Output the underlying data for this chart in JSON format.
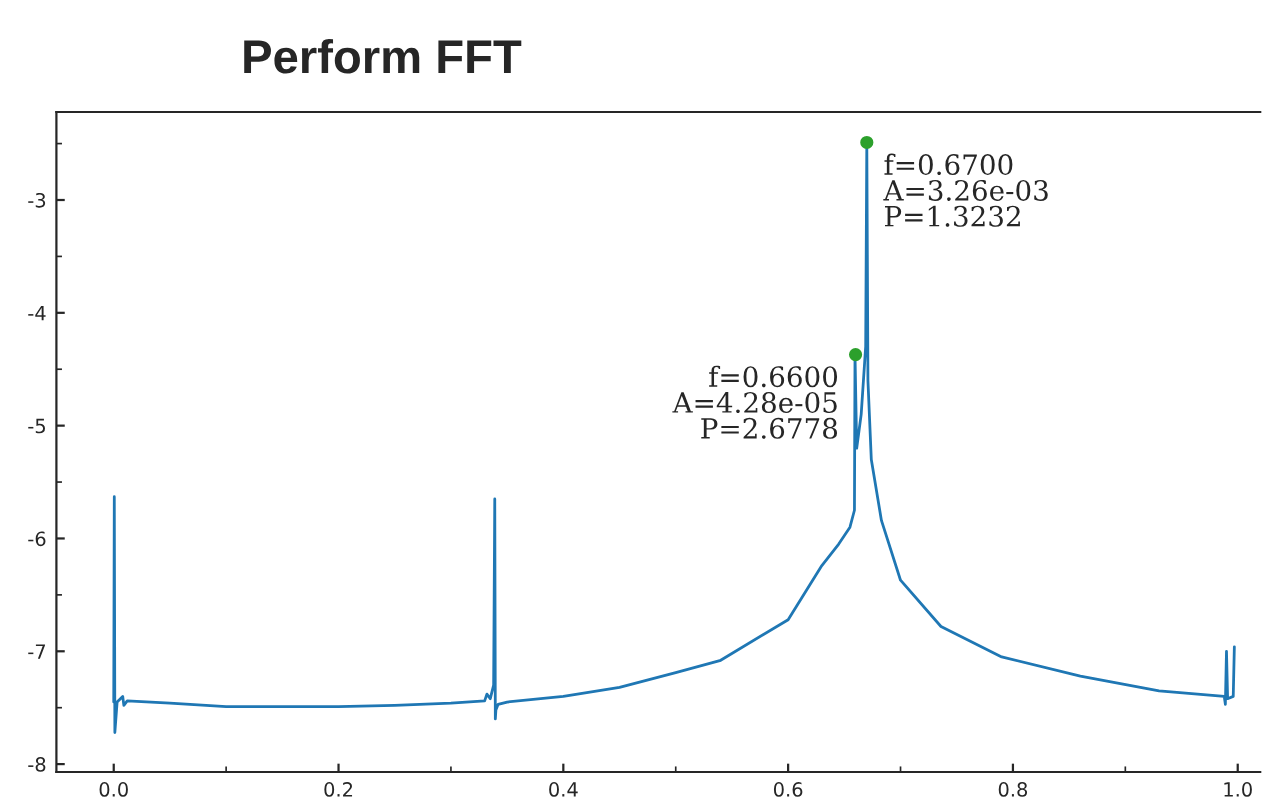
{
  "chart_data": {
    "type": "line",
    "title": "Perform FFT",
    "x": [
      0.0,
      0.0005,
      0.001,
      0.003,
      0.008,
      0.009,
      0.012,
      0.05,
      0.1,
      0.2,
      0.25,
      0.3,
      0.33,
      0.332,
      0.335,
      0.338,
      0.339,
      0.3395,
      0.34,
      0.342,
      0.35,
      0.4,
      0.45,
      0.5,
      0.54,
      0.6,
      0.63,
      0.645,
      0.655,
      0.659,
      0.6595,
      0.661,
      0.665,
      0.669,
      0.67,
      0.671,
      0.674,
      0.683,
      0.7,
      0.736,
      0.79,
      0.86,
      0.93,
      0.988,
      0.989,
      0.99,
      0.991,
      0.996,
      0.997
    ],
    "series": [
      {
        "color": "#1f77b4",
        "values": [
          -7.45,
          -5.63,
          -7.72,
          -7.45,
          -7.4,
          -7.48,
          -7.44,
          -7.46,
          -7.49,
          -7.49,
          -7.48,
          -7.46,
          -7.44,
          -7.38,
          -7.42,
          -7.3,
          -5.65,
          -7.6,
          -7.52,
          -7.47,
          -7.45,
          -7.4,
          -7.32,
          -7.19,
          -7.08,
          -6.72,
          -6.24,
          -6.05,
          -5.9,
          -5.75,
          -4.37,
          -5.2,
          -4.9,
          -4.3,
          -2.49,
          -4.6,
          -5.3,
          -5.84,
          -6.37,
          -6.78,
          -7.05,
          -7.22,
          -7.35,
          -7.4,
          -7.47,
          -7.0,
          -7.42,
          -7.4,
          -6.96
        ]
      },
      {
        "type": "scatter",
        "color": "#2ca02c",
        "marker": "circle",
        "x": [
          0.66,
          0.67
        ],
        "values": [
          -4.37,
          -2.49
        ]
      }
    ],
    "xlim": [
      -0.051,
      1.02
    ],
    "ylim": [
      -8.07,
      -2.22
    ],
    "xticks": [
      {
        "value": 0.0,
        "label": "0.0"
      },
      0.2,
      0.4,
      0.6,
      0.8,
      {
        "value": 1.0,
        "label": "1.0"
      }
    ],
    "yticks": [
      -8,
      -7,
      -6,
      -5,
      -4,
      -3
    ],
    "grid": false,
    "legend": false,
    "annotations": [
      {
        "text": "f=0.6700\nA=3.26e-03\nP=1.3232",
        "x": 0.67,
        "y": -2.49
      },
      {
        "text": "f=0.6600\nA=4.28e-05\nP=2.6778",
        "x": 0.66,
        "y": -4.37
      }
    ]
  }
}
